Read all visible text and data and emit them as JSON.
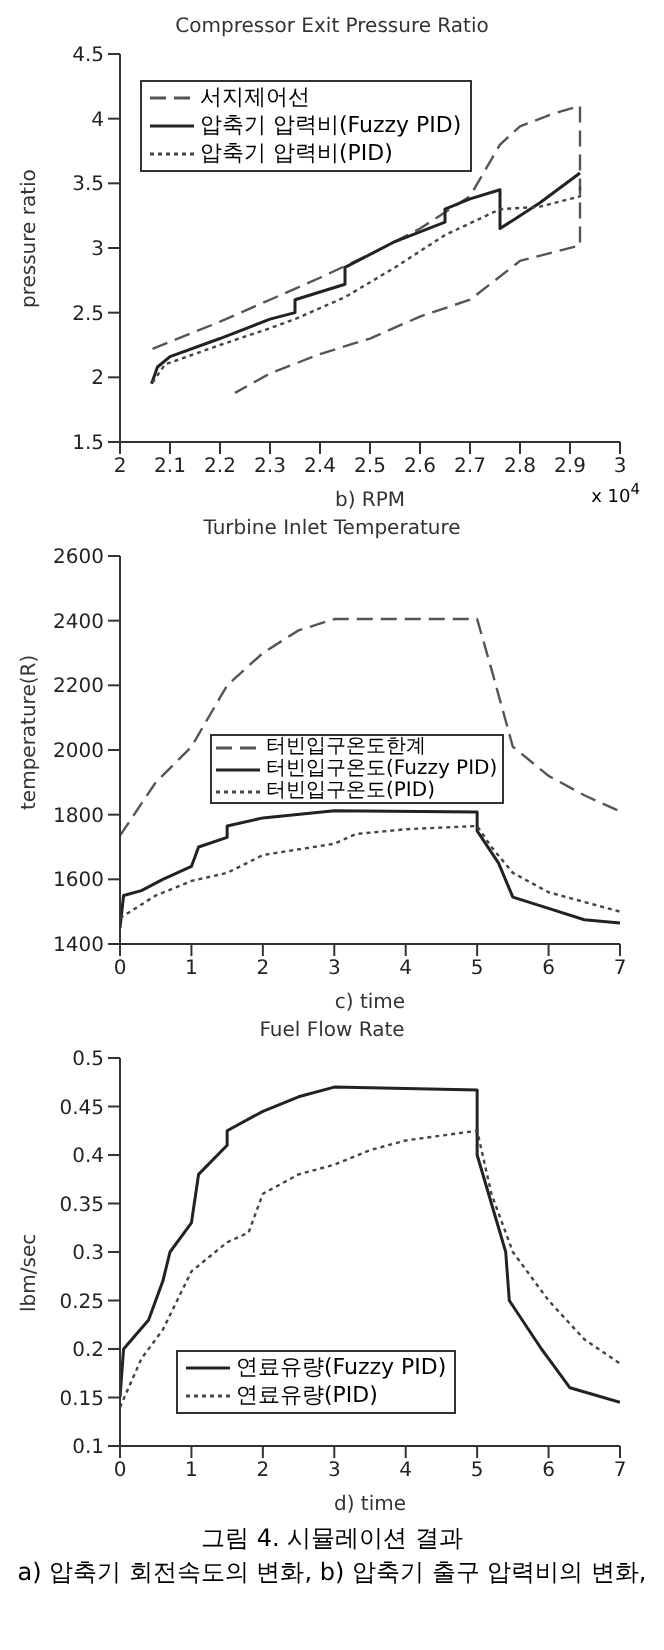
{
  "chart_data": [
    {
      "type": "line",
      "title": "Compressor Exit Pressure Ratio",
      "xlabel": "b)    RPM",
      "ylabel": "pressure ratio",
      "xlim": [
        2,
        3
      ],
      "xticks": [
        2,
        2.1,
        2.2,
        2.3,
        2.4,
        2.5,
        2.6,
        2.7,
        2.8,
        2.9,
        3
      ],
      "ylim": [
        1.5,
        4.5
      ],
      "yticks": [
        1.5,
        2,
        2.5,
        3,
        3.5,
        4,
        4.5
      ],
      "grid": false,
      "legend": "top left",
      "annotations": [
        "x 10$^{4}$"
      ],
      "series": [
        {
          "name": "서지제어선",
          "color": "#555555",
          "line_style": "dashed",
          "x": [
            2.065,
            2.2,
            2.3,
            2.4,
            2.5,
            2.6,
            2.7,
            2.76,
            2.8,
            2.86,
            2.92,
            2.92,
            2.86,
            2.8,
            2.76,
            2.7,
            2.6,
            2.5,
            2.4,
            2.3,
            2.23
          ],
          "values": [
            2.22,
            2.43,
            2.6,
            2.77,
            2.95,
            3.15,
            3.4,
            3.8,
            3.94,
            4.03,
            4.1,
            3.02,
            2.96,
            2.9,
            2.78,
            2.6,
            2.47,
            2.3,
            2.18,
            2.03,
            1.88
          ]
        },
        {
          "name": "압축기 압력비(Fuzzy PID)",
          "color": "#222222",
          "line_style": "solid",
          "x": [
            2.063,
            2.075,
            2.1,
            2.2,
            2.3,
            2.35,
            2.35,
            2.45,
            2.45,
            2.55,
            2.65,
            2.65,
            2.7,
            2.76,
            2.76,
            2.84,
            2.92
          ],
          "values": [
            1.95,
            2.08,
            2.16,
            2.3,
            2.45,
            2.5,
            2.6,
            2.72,
            2.85,
            3.05,
            3.2,
            3.3,
            3.38,
            3.45,
            3.15,
            3.35,
            3.58
          ]
        },
        {
          "name": "압축기 압력비(PID)",
          "color": "#444444",
          "line_style": "dotted",
          "x": [
            2.065,
            2.09,
            2.2,
            2.3,
            2.35,
            2.45,
            2.55,
            2.65,
            2.76,
            2.84,
            2.92,
            2.92
          ],
          "values": [
            1.96,
            2.1,
            2.25,
            2.38,
            2.45,
            2.62,
            2.85,
            3.1,
            3.3,
            3.32,
            3.4,
            3.5
          ]
        }
      ]
    },
    {
      "type": "line",
      "title": "Turbine Inlet Temperature",
      "xlabel": "c)    time",
      "ylabel": "temperature(R)",
      "xlim": [
        0,
        7
      ],
      "xticks": [
        0,
        1,
        2,
        3,
        4,
        5,
        6,
        7
      ],
      "ylim": [
        1400,
        2600
      ],
      "yticks": [
        1400,
        1600,
        1800,
        2000,
        2200,
        2400,
        2600
      ],
      "grid": false,
      "legend": "left",
      "series": [
        {
          "name": "터빈입구온도한계",
          "color": "#555555",
          "line_style": "dashed",
          "x": [
            0,
            0.5,
            1,
            1.5,
            2,
            2.5,
            3,
            5,
            5.2,
            5.5,
            6,
            6.5,
            7
          ],
          "values": [
            1735,
            1900,
            2010,
            2200,
            2300,
            2370,
            2405,
            2405,
            2250,
            2010,
            1920,
            1860,
            1810
          ]
        },
        {
          "name": "터빈입구온도(Fuzzy PID)",
          "color": "#222222",
          "line_style": "solid",
          "x": [
            0,
            0.05,
            0.3,
            0.6,
            1,
            1.1,
            1.5,
            1.5,
            2,
            3,
            5,
            5,
            5.3,
            5.5,
            6,
            6.5,
            7
          ],
          "values": [
            1450,
            1550,
            1565,
            1600,
            1640,
            1700,
            1730,
            1765,
            1790,
            1812,
            1808,
            1750,
            1650,
            1545,
            1510,
            1475,
            1465
          ]
        },
        {
          "name": "터빈입구온도(PID)",
          "color": "#444444",
          "line_style": "dotted",
          "x": [
            0,
            0.5,
            1,
            1.5,
            2,
            3,
            3.3,
            4,
            5,
            5.2,
            5.5,
            6,
            6.5,
            7
          ],
          "values": [
            1480,
            1550,
            1595,
            1620,
            1675,
            1710,
            1740,
            1755,
            1765,
            1700,
            1620,
            1560,
            1530,
            1500
          ]
        }
      ]
    },
    {
      "type": "line",
      "title": "Fuel Flow Rate",
      "xlabel": "d)    time",
      "ylabel": "lbm/sec",
      "xlim": [
        0,
        7
      ],
      "xticks": [
        0,
        1,
        2,
        3,
        4,
        5,
        6,
        7
      ],
      "ylim": [
        0.1,
        0.5
      ],
      "yticks": [
        0.1,
        0.15,
        0.2,
        0.25,
        0.3,
        0.35,
        0.4,
        0.45,
        0.5
      ],
      "grid": false,
      "legend": "bottom left",
      "annotations": [
        "그림 4. 시뮬레이션 결과",
        "a) 압축기 회전속도의 변화, b) 압축기 출구 압력비의 변화,"
      ],
      "series": [
        {
          "name": "연료유량(Fuzzy PID)",
          "color": "#222222",
          "line_style": "solid",
          "x": [
            0,
            0.05,
            0.4,
            0.6,
            0.7,
            1,
            1.1,
            1.5,
            1.5,
            2,
            2.5,
            3,
            5,
            5,
            5.2,
            5.4,
            5.45,
            5.9,
            6,
            6.3,
            7
          ],
          "values": [
            0.15,
            0.2,
            0.23,
            0.27,
            0.3,
            0.33,
            0.38,
            0.41,
            0.425,
            0.445,
            0.46,
            0.47,
            0.467,
            0.4,
            0.35,
            0.3,
            0.25,
            0.2,
            0.19,
            0.16,
            0.145
          ]
        },
        {
          "name": "연료유량(PID)",
          "color": "#444444",
          "line_style": "dotted",
          "x": [
            0,
            0.3,
            0.6,
            1,
            1.5,
            1.8,
            2,
            2.5,
            3,
            3.5,
            4,
            5,
            5.2,
            5.5,
            6,
            6.5,
            7
          ],
          "values": [
            0.14,
            0.19,
            0.22,
            0.28,
            0.31,
            0.32,
            0.36,
            0.38,
            0.39,
            0.405,
            0.415,
            0.425,
            0.36,
            0.3,
            0.25,
            0.21,
            0.185
          ]
        }
      ]
    }
  ]
}
